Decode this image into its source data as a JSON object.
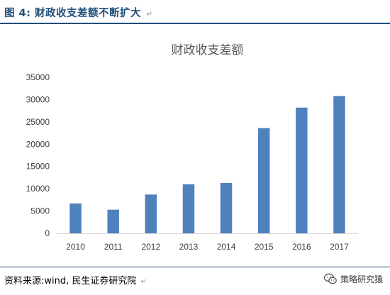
{
  "figure": {
    "label": "图 4:",
    "title": "财政收支差额不断扩大",
    "para_mark": "↵"
  },
  "source": {
    "text": "资料来源:wind, 民生证券研究院",
    "para_mark": "↵"
  },
  "watermark": {
    "text": "策略研究猿",
    "icon": "wechat-icon"
  },
  "colors": {
    "bar": "#4f81bd",
    "header": "#1f4e79",
    "axis": "#d9d9d9",
    "tick_text": "#404040",
    "title_text": "#595959"
  },
  "chart_data": {
    "type": "bar",
    "title": "财政收支差额",
    "xlabel": "",
    "ylabel": "",
    "categories": [
      "2010",
      "2011",
      "2012",
      "2013",
      "2014",
      "2015",
      "2016",
      "2017"
    ],
    "values": [
      6700,
      5300,
      8700,
      11000,
      11300,
      23600,
      28200,
      30800
    ],
    "ylim": [
      0,
      35000
    ],
    "yticks": [
      "0",
      "5000",
      "10000",
      "15000",
      "20000",
      "25000",
      "30000",
      "35000"
    ],
    "grid": false,
    "legend": "none"
  }
}
